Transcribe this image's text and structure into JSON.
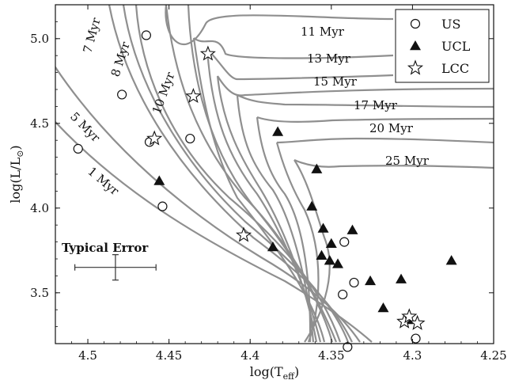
{
  "chart_data": {
    "type": "scatter",
    "xlabel": "log(T",
    "xlabel_sub": "eff",
    "xlabel_close": ")",
    "ylabel": "log(L/L",
    "ylabel_sub": "⊙",
    "ylabel_close": ")",
    "xlim": [
      4.52,
      4.25
    ],
    "ylim": [
      3.2,
      5.2
    ],
    "x_ticks": [
      4.5,
      4.45,
      4.4,
      4.35,
      4.3,
      4.25
    ],
    "x_tick_labels": [
      "4.5",
      "4.45",
      "4.4",
      "4.35",
      "4.3",
      "4.25"
    ],
    "y_ticks": [
      3.5,
      4.0,
      4.5,
      5.0
    ],
    "y_tick_labels": [
      "3.5",
      "4.0",
      "4.5",
      "5.0"
    ],
    "grid": false,
    "legend_position": "top-right",
    "series": [
      {
        "name": "US",
        "marker": "circle",
        "points": [
          [
            4.464,
            5.02
          ],
          [
            4.479,
            4.67
          ],
          [
            4.462,
            4.39
          ],
          [
            4.437,
            4.41
          ],
          [
            4.506,
            4.35
          ],
          [
            4.454,
            4.01
          ],
          [
            4.342,
            3.8
          ],
          [
            4.336,
            3.56
          ],
          [
            4.343,
            3.49
          ],
          [
            4.298,
            3.23
          ],
          [
            4.34,
            3.18
          ]
        ]
      },
      {
        "name": "UCL",
        "marker": "triangle",
        "points": [
          [
            4.383,
            4.45
          ],
          [
            4.359,
            4.23
          ],
          [
            4.362,
            4.01
          ],
          [
            4.456,
            4.16
          ],
          [
            4.355,
            3.88
          ],
          [
            4.337,
            3.87
          ],
          [
            4.35,
            3.79
          ],
          [
            4.386,
            3.77
          ],
          [
            4.356,
            3.72
          ],
          [
            4.351,
            3.69
          ],
          [
            4.346,
            3.67
          ],
          [
            4.326,
            3.57
          ],
          [
            4.307,
            3.58
          ],
          [
            4.276,
            3.69
          ],
          [
            4.318,
            3.41
          ],
          [
            4.303,
            3.34
          ]
        ]
      },
      {
        "name": "LCC",
        "marker": "star",
        "points": [
          [
            4.426,
            4.91
          ],
          [
            4.435,
            4.66
          ],
          [
            4.459,
            4.41
          ],
          [
            4.404,
            3.84
          ],
          [
            4.305,
            3.33
          ],
          [
            4.302,
            3.36
          ],
          [
            4.297,
            3.32
          ]
        ]
      }
    ],
    "isochrones": [
      {
        "name": "1 Myr"
      },
      {
        "name": "5 Myr"
      },
      {
        "name": "7 Myr"
      },
      {
        "name": "8 Myr"
      },
      {
        "name": "10 Myr"
      },
      {
        "name": "11 Myr"
      },
      {
        "name": "13 Myr"
      },
      {
        "name": "15 Myr"
      },
      {
        "name": "17 Myr"
      },
      {
        "name": "20 Myr"
      },
      {
        "name": "25 Myr"
      }
    ],
    "annotation": "Typical Error",
    "typical_error": {
      "x": 4.483,
      "y": 3.65,
      "x_err": 0.025,
      "y_err": 0.075
    }
  }
}
